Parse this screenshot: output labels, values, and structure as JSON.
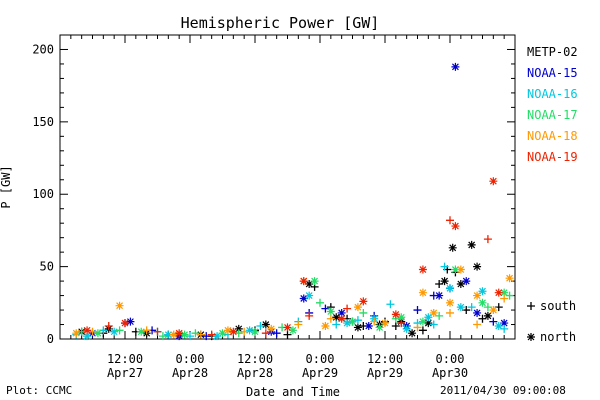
{
  "chart_data": {
    "type": "scatter",
    "title": "Hemispheric Power [GW]",
    "xlabel": "Date and Time",
    "ylabel": "P [GW]",
    "x_unit": "hour",
    "xlim": [
      0,
      84
    ],
    "ylim": [
      0,
      210
    ],
    "y_ticks": [
      0,
      50,
      100,
      150,
      200
    ],
    "y_minor_step": 10,
    "x_ticks": [
      {
        "x": 12,
        "top": "12:00",
        "bottom": "Apr27"
      },
      {
        "x": 24,
        "top": "0:00",
        "bottom": "Apr28"
      },
      {
        "x": 36,
        "top": "12:00",
        "bottom": "Apr28"
      },
      {
        "x": 48,
        "top": "0:00",
        "bottom": "Apr29"
      },
      {
        "x": 60,
        "top": "12:00",
        "bottom": "Apr29"
      },
      {
        "x": 72,
        "top": "0:00",
        "bottom": "Apr30"
      }
    ],
    "legend_position": "right",
    "series": [
      {
        "name": "METP-02",
        "color": "#000000",
        "south": [
          [
            8,
            4
          ],
          [
            14,
            5
          ],
          [
            20,
            3
          ],
          [
            28,
            2
          ],
          [
            36,
            6
          ],
          [
            42,
            3
          ],
          [
            47,
            36
          ],
          [
            50,
            22
          ],
          [
            53,
            14
          ],
          [
            56,
            9
          ],
          [
            60,
            12
          ],
          [
            62,
            9
          ],
          [
            67,
            6
          ],
          [
            70,
            38
          ],
          [
            71.5,
            48
          ],
          [
            73,
            46
          ],
          [
            75,
            20
          ],
          [
            78,
            14
          ],
          [
            81,
            22
          ]
        ],
        "north": [
          [
            4,
            5
          ],
          [
            9,
            7
          ],
          [
            16,
            4
          ],
          [
            26,
            3
          ],
          [
            33,
            7
          ],
          [
            38,
            10
          ],
          [
            46,
            38
          ],
          [
            51,
            15
          ],
          [
            55,
            8
          ],
          [
            59,
            10
          ],
          [
            63,
            12
          ],
          [
            65,
            4
          ],
          [
            68,
            11
          ],
          [
            71,
            40
          ],
          [
            72.5,
            63
          ],
          [
            74,
            38
          ],
          [
            76,
            65
          ],
          [
            77,
            50
          ],
          [
            79,
            16
          ]
        ]
      },
      {
        "name": "NOAA-15",
        "color": "#0000cc",
        "south": [
          [
            12,
            11
          ],
          [
            17,
            6
          ],
          [
            27,
            2
          ],
          [
            40,
            4
          ],
          [
            46,
            18
          ],
          [
            49,
            21
          ],
          [
            54,
            12
          ],
          [
            58,
            16
          ],
          [
            66,
            20
          ],
          [
            69,
            30
          ],
          [
            72,
            35
          ],
          [
            80,
            12
          ]
        ],
        "north": [
          [
            6,
            4
          ],
          [
            13,
            12
          ],
          [
            22,
            2
          ],
          [
            39,
            5
          ],
          [
            45,
            28
          ],
          [
            52,
            18
          ],
          [
            57,
            9
          ],
          [
            64,
            9
          ],
          [
            70,
            30
          ],
          [
            73,
            188
          ],
          [
            75,
            40
          ],
          [
            77,
            18
          ],
          [
            82,
            11
          ]
        ]
      },
      {
        "name": "NOAA-16",
        "color": "#00c8e0",
        "south": [
          [
            3,
            3
          ],
          [
            8,
            6
          ],
          [
            18,
            5
          ],
          [
            24,
            2
          ],
          [
            31,
            3
          ],
          [
            37,
            9
          ],
          [
            44,
            12
          ],
          [
            51,
            10
          ],
          [
            55,
            13
          ],
          [
            61,
            24
          ],
          [
            66,
            11
          ],
          [
            69,
            10
          ],
          [
            71,
            50
          ],
          [
            76,
            22
          ],
          [
            82,
            7
          ]
        ],
        "north": [
          [
            5,
            2
          ],
          [
            10,
            5
          ],
          [
            20,
            3
          ],
          [
            29,
            2
          ],
          [
            35,
            6
          ],
          [
            46,
            30
          ],
          [
            53,
            11
          ],
          [
            58,
            14
          ],
          [
            64,
            7
          ],
          [
            68,
            15
          ],
          [
            72,
            35
          ],
          [
            74,
            22
          ],
          [
            78,
            33
          ],
          [
            81,
            9
          ]
        ]
      },
      {
        "name": "NOAA-17",
        "color": "#22dd66",
        "south": [
          [
            4,
            5
          ],
          [
            11,
            6
          ],
          [
            19,
            2
          ],
          [
            25,
            4
          ],
          [
            33,
            4
          ],
          [
            41,
            8
          ],
          [
            48,
            25
          ],
          [
            56,
            18
          ],
          [
            62,
            14
          ],
          [
            70,
            16
          ],
          [
            79,
            22
          ],
          [
            83,
            30
          ]
        ],
        "north": [
          [
            7,
            4
          ],
          [
            15,
            5
          ],
          [
            23,
            3
          ],
          [
            30,
            4
          ],
          [
            36,
            5
          ],
          [
            43,
            6
          ],
          [
            47,
            40
          ],
          [
            50,
            19
          ],
          [
            54,
            12
          ],
          [
            59,
            8
          ],
          [
            63,
            15
          ],
          [
            67,
            12
          ],
          [
            73,
            48
          ],
          [
            78,
            25
          ],
          [
            82,
            32
          ]
        ]
      },
      {
        "name": "NOAA-18",
        "color": "#ff9900",
        "south": [
          [
            6,
            5
          ],
          [
            16,
            6
          ],
          [
            26,
            3
          ],
          [
            34,
            5
          ],
          [
            44,
            10
          ],
          [
            50,
            14
          ],
          [
            58,
            12
          ],
          [
            66,
            8
          ],
          [
            72,
            18
          ],
          [
            77,
            10
          ],
          [
            82,
            28
          ]
        ],
        "north": [
          [
            3,
            4
          ],
          [
            11,
            23
          ],
          [
            21,
            3
          ],
          [
            31,
            6
          ],
          [
            39,
            7
          ],
          [
            45,
            40
          ],
          [
            49,
            9
          ],
          [
            55,
            22
          ],
          [
            60,
            11
          ],
          [
            67,
            32
          ],
          [
            69,
            18
          ],
          [
            72,
            25
          ],
          [
            74,
            48
          ],
          [
            77,
            30
          ],
          [
            80,
            20
          ],
          [
            83,
            42
          ]
        ]
      },
      {
        "name": "NOAA-19",
        "color": "#ee2200",
        "south": [
          [
            9,
            9
          ],
          [
            18,
            5
          ],
          [
            28,
            3
          ],
          [
            38,
            4
          ],
          [
            46,
            16
          ],
          [
            53,
            21
          ],
          [
            63,
            11
          ],
          [
            72,
            82
          ],
          [
            79,
            69
          ]
        ],
        "north": [
          [
            5,
            6
          ],
          [
            12,
            11
          ],
          [
            22,
            4
          ],
          [
            32,
            5
          ],
          [
            42,
            8
          ],
          [
            45,
            40
          ],
          [
            52,
            14
          ],
          [
            56,
            26
          ],
          [
            62,
            17
          ],
          [
            67,
            48
          ],
          [
            73,
            78
          ],
          [
            80,
            109
          ],
          [
            81,
            32
          ]
        ]
      }
    ],
    "marker_legend": [
      {
        "symbol": "+",
        "label": "south"
      },
      {
        "symbol": "*",
        "label": "north"
      }
    ]
  },
  "footer": {
    "left": "Plot: CCMC",
    "right": "2011/04/30 09:00:08"
  }
}
